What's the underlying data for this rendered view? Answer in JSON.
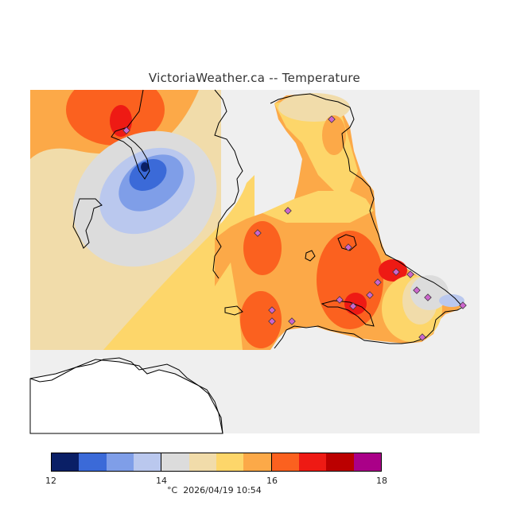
{
  "title": "VictoriaWeather.ca -- Temperature",
  "map": {
    "station_color": "#cc66cc",
    "coast_color": "#000000",
    "nodata_color": "#efefef"
  },
  "legend": {
    "colors": [
      "#0a1f66",
      "#3b6ad8",
      "#7f9ee8",
      "#bac8ee",
      "#dcdcdc",
      "#f1dcaa",
      "#fdd66a",
      "#fca948",
      "#fb611f",
      "#ee1a14",
      "#bb0000",
      "#aa0088"
    ],
    "ticks": [
      "12",
      "14",
      "16",
      "18"
    ],
    "unit": "°C",
    "timestamp": "2026/04/19 10:54"
  }
}
